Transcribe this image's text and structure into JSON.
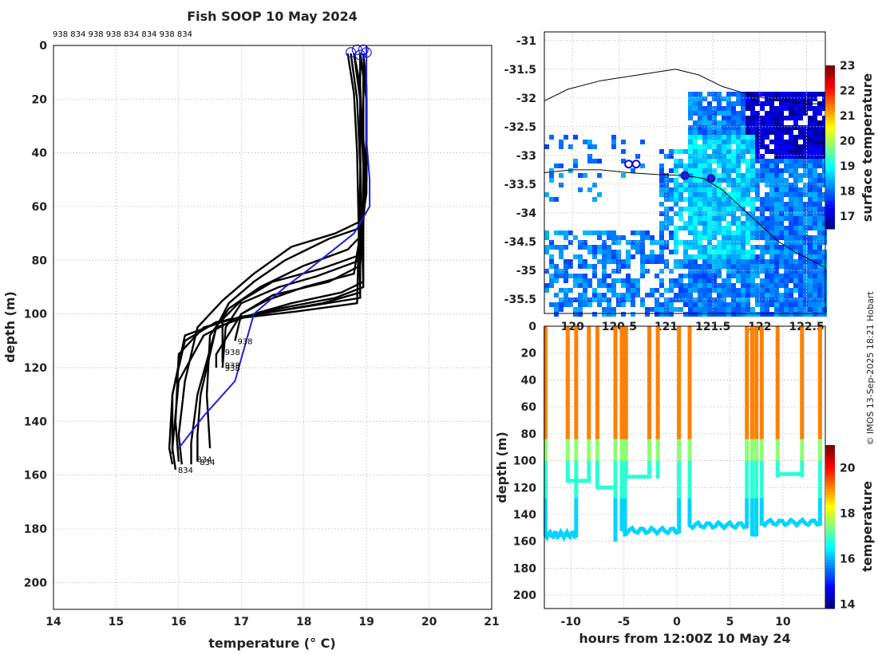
{
  "chart_data": [
    {
      "type": "line",
      "title": "Fish SOOP 10 May 2024",
      "xlabel": "temperature (° C)",
      "ylabel": "depth (m)",
      "xlim": [
        14,
        21
      ],
      "ylim": [
        0,
        210
      ],
      "xticks": [
        "14",
        "15",
        "16",
        "17",
        "18",
        "19",
        "20",
        "21"
      ],
      "yticks": [
        "0",
        "20",
        "40",
        "60",
        "80",
        "100",
        "120",
        "140",
        "160",
        "180",
        "200"
      ],
      "vessel_ids_top": "938 834 938 938 834 834 938 834",
      "profile_end_labels": [
        {
          "text": "938",
          "t": 16.9,
          "d": 110
        },
        {
          "text": "938",
          "t": 16.7,
          "d": 114
        },
        {
          "text": "938",
          "t": 16.7,
          "d": 119
        },
        {
          "text": "938",
          "t": 16.7,
          "d": 120
        },
        {
          "text": "834",
          "t": 16.25,
          "d": 154
        },
        {
          "text": "834",
          "t": 16.3,
          "d": 155
        },
        {
          "text": "834",
          "t": 15.95,
          "d": 158
        }
      ],
      "mean_profile": {
        "color": "#1f1fdd",
        "temp": [
          19.0,
          19.0,
          19.0,
          19.05,
          19.05,
          18.8,
          18.1,
          17.7,
          17.2,
          16.9,
          16.4,
          16.0
        ],
        "depth": [
          0,
          20,
          35,
          50,
          60,
          70,
          83,
          90,
          100,
          125,
          138,
          150
        ]
      },
      "profiles": [
        {
          "temp": [
            18.9,
            18.95,
            18.95,
            18.95,
            18.9,
            18.4,
            17.7,
            17.2,
            16.8,
            16.6,
            16.35,
            16.3,
            16.3
          ],
          "depth": [
            3,
            10,
            30,
            60,
            68,
            72,
            80,
            88,
            96,
            105,
            130,
            145,
            155
          ]
        },
        {
          "temp": [
            18.95,
            19.0,
            19.0,
            18.95,
            18.5,
            17.8,
            17.2,
            16.7,
            16.3,
            16.1,
            16.0,
            16.05
          ],
          "depth": [
            3,
            15,
            35,
            65,
            70,
            75,
            85,
            95,
            105,
            125,
            145,
            156
          ]
        },
        {
          "temp": [
            18.9,
            18.9,
            18.95,
            18.95,
            18.7,
            18.0,
            17.3,
            16.8,
            16.5,
            16.45,
            16.5
          ],
          "depth": [
            3,
            15,
            40,
            70,
            76,
            82,
            90,
            98,
            108,
            130,
            150
          ]
        },
        {
          "temp": [
            18.9,
            19.0,
            19.0,
            18.9,
            18.3,
            17.5,
            17.0,
            16.7,
            16.7
          ],
          "depth": [
            3,
            20,
            50,
            78,
            83,
            88,
            95,
            102,
            118
          ]
        },
        {
          "temp": [
            18.95,
            19.0,
            19.0,
            18.9,
            18.2,
            17.6,
            17.0,
            16.75,
            16.7
          ],
          "depth": [
            3,
            20,
            50,
            80,
            86,
            90,
            96,
            105,
            120
          ]
        },
        {
          "temp": [
            18.9,
            18.9,
            19.0,
            18.9,
            18.4,
            17.5,
            17.0,
            16.9
          ],
          "depth": [
            3,
            20,
            50,
            82,
            88,
            93,
            100,
            110
          ]
        },
        {
          "temp": [
            18.9,
            19.0,
            19.0,
            18.8,
            18.0,
            17.4,
            17.0,
            16.6,
            16.6
          ],
          "depth": [
            3,
            20,
            55,
            85,
            90,
            95,
            100,
            115,
            120
          ]
        },
        {
          "temp": [
            18.8,
            18.9,
            18.95,
            18.95,
            18.6,
            17.8,
            17.2,
            16.6,
            16.3,
            16.2,
            16.2
          ],
          "depth": [
            3,
            20,
            45,
            88,
            92,
            96,
            100,
            105,
            130,
            148,
            156
          ]
        },
        {
          "temp": [
            18.8,
            18.9,
            18.9,
            18.95,
            18.5,
            17.6,
            16.9,
            16.4,
            16.0,
            15.9,
            15.95
          ],
          "depth": [
            3,
            15,
            40,
            90,
            94,
            98,
            102,
            108,
            125,
            150,
            158
          ]
        },
        {
          "temp": [
            18.75,
            18.85,
            18.9,
            18.9,
            18.3,
            17.3,
            16.6,
            16.1,
            15.9,
            15.85,
            15.9
          ],
          "depth": [
            3,
            20,
            45,
            92,
            96,
            100,
            103,
            110,
            130,
            150,
            156
          ]
        },
        {
          "temp": [
            18.7,
            18.8,
            18.85,
            18.9,
            18.1,
            17.0,
            16.4,
            16.0,
            15.95,
            16.0
          ],
          "depth": [
            3,
            18,
            40,
            94,
            97,
            101,
            105,
            115,
            140,
            155
          ]
        },
        {
          "temp": [
            18.8,
            18.9,
            18.9,
            18.85,
            17.9,
            16.8,
            16.1,
            15.9,
            15.9
          ],
          "depth": [
            3,
            20,
            50,
            96,
            99,
            102,
            108,
            130,
            152
          ]
        }
      ],
      "surface_markers": [
        {
          "t": 18.75,
          "d": 2
        },
        {
          "t": 18.85,
          "d": 1
        },
        {
          "t": 18.95,
          "d": 1
        },
        {
          "t": 19.0,
          "d": 2
        },
        {
          "t": 18.9,
          "d": 3
        }
      ]
    },
    {
      "type": "heatmap",
      "subtype": "map",
      "ylabel_ticks": [
        "-31",
        "-31.5",
        "-32",
        "-32.5",
        "-33",
        "-33.5",
        "-34",
        "-34.5",
        "-35",
        "-35.5"
      ],
      "lat_range": [
        -35.75,
        -30.85
      ],
      "lon_range": [
        119.7,
        122.7
      ],
      "xtick_lons": [
        120,
        120.5,
        121,
        121.5,
        122,
        122.5
      ],
      "xtick_labels": [
        "120",
        "120.5",
        "121",
        "121.5",
        "122",
        "122.5"
      ],
      "colorbar_label": "surface temperature",
      "colorbar_ticks": [
        "17",
        "18",
        "19",
        "20",
        "21",
        "22",
        "23"
      ],
      "colorbar_range": [
        16.5,
        23.0
      ],
      "coastline": [
        [
          119.7,
          -32.05
        ],
        [
          119.95,
          -31.85
        ],
        [
          120.3,
          -31.7
        ],
        [
          120.7,
          -31.6
        ],
        [
          121.1,
          -31.5
        ],
        [
          121.35,
          -31.6
        ],
        [
          121.6,
          -31.8
        ],
        [
          121.9,
          -31.95
        ],
        [
          122.2,
          -32.05
        ],
        [
          122.5,
          -32.1
        ],
        [
          122.7,
          -32.1
        ]
      ],
      "ship_track": [
        [
          119.7,
          -33.3
        ],
        [
          120.0,
          -33.25
        ],
        [
          120.3,
          -33.25
        ],
        [
          120.6,
          -33.3
        ],
        [
          120.9,
          -33.33
        ],
        [
          121.2,
          -33.35
        ],
        [
          121.4,
          -33.4
        ],
        [
          121.6,
          -33.6
        ],
        [
          121.8,
          -33.9
        ],
        [
          122.0,
          -34.2
        ],
        [
          122.2,
          -34.5
        ],
        [
          122.4,
          -34.7
        ],
        [
          122.7,
          -34.95
        ]
      ],
      "profile_locations": [
        {
          "lon": 120.6,
          "lat": -33.15,
          "filled": false
        },
        {
          "lon": 120.68,
          "lat": -33.15,
          "filled": false
        },
        {
          "lon": 121.2,
          "lat": -33.35,
          "filled": true
        },
        {
          "lon": 121.48,
          "lat": -33.4,
          "filled": true
        }
      ],
      "legend_note": "© IMOS 13-Sep-2025 18:21 Hobart"
    },
    {
      "type": "scatter",
      "subtype": "time-depth section",
      "xlabel": "hours from 12:00Z 10 May 24",
      "ylabel": "depth (m)",
      "xlim": [
        -12.5,
        14
      ],
      "ylim": [
        0,
        210
      ],
      "xticks": [
        "-10",
        "-5",
        "0",
        "5",
        "10"
      ],
      "yticks": [
        "0",
        "20",
        "40",
        "60",
        "80",
        "100",
        "120",
        "140",
        "160",
        "180",
        "200"
      ],
      "colorbar_label": "temperature",
      "colorbar_ticks": [
        "14",
        "16",
        "18",
        "20"
      ],
      "colorbar_range": [
        13.8,
        21.0
      ],
      "casts": [
        {
          "t0": -12.4,
          "t1": -9.5,
          "bottom": 155,
          "jagged": true
        },
        {
          "t0": -10.3,
          "t1": -8.3,
          "bottom": 115,
          "jagged": false
        },
        {
          "t0": -7.5,
          "t1": -5.8,
          "bottom": 120,
          "jagged": false
        },
        {
          "t0": -5.8,
          "t1": -5.8,
          "bottom": 158,
          "jagged": false
        },
        {
          "t0": -5.2,
          "t1": -5.2,
          "bottom": 150,
          "jagged": false
        },
        {
          "t0": -4.9,
          "t1": -4.9,
          "bottom": 155,
          "jagged": false
        },
        {
          "t0": -4.8,
          "t1": -2.6,
          "bottom": 112,
          "jagged": false
        },
        {
          "t0": -1.8,
          "t1": -1.8,
          "bottom": 112,
          "jagged": false
        },
        {
          "t0": -5.0,
          "t1": 0.2,
          "bottom": 152,
          "jagged": true
        },
        {
          "t0": 1.2,
          "t1": 6.6,
          "bottom": 148,
          "jagged": true
        },
        {
          "t0": 7.1,
          "t1": 7.5,
          "bottom": 155,
          "jagged": false
        },
        {
          "t0": 9.5,
          "t1": 11.8,
          "bottom": 110,
          "jagged": false
        },
        {
          "t0": 8.0,
          "t1": 13.5,
          "bottom": 146,
          "jagged": true
        }
      ]
    }
  ]
}
